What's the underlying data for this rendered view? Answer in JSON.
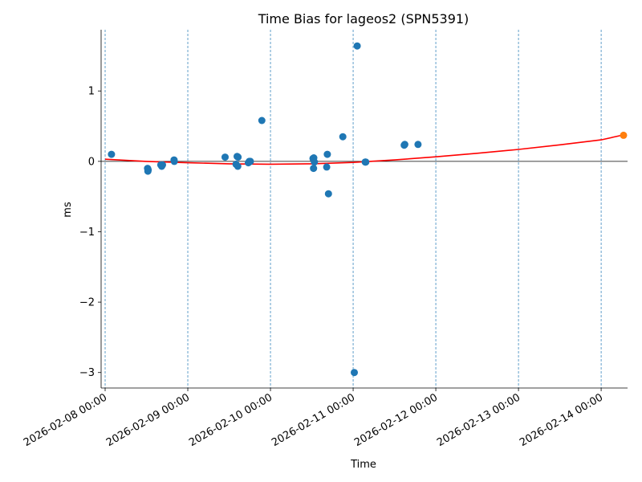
{
  "chart_data": {
    "type": "scatter",
    "title": "Time Bias for lageos2 (SPN5391)",
    "xlabel": "Time",
    "ylabel": "ms",
    "x_tick_labels": [
      "2026-02-08 00:00",
      "2026-02-09 00:00",
      "2026-02-10 00:00",
      "2026-02-11 00:00",
      "2026-02-12 00:00",
      "2026-02-13 00:00",
      "2026-02-14 00:00"
    ],
    "y_tick_labels": [
      "1",
      "0",
      "−1",
      "−2",
      "−3"
    ],
    "y_ticks": [
      1,
      0,
      -1,
      -2,
      -3
    ],
    "xlim": [
      "2026-02-07 22:50",
      "2026-02-14 07:40"
    ],
    "ylim": [
      -3.22,
      1.87
    ],
    "grid": "vertical dashed lines at daily ticks",
    "colors": {
      "points": "#1f77b4",
      "fit": "#ff0000",
      "prediction": "#ff7f0e",
      "grid": "#1f77b4",
      "zero_line": "#000000"
    },
    "series": [
      {
        "points": [
          [
            "2026-02-08 01:50",
            0.1
          ],
          [
            "2026-02-08 12:20",
            -0.1
          ],
          [
            "2026-02-08 12:25",
            -0.14
          ],
          [
            "2026-02-08 12:30",
            -0.12
          ],
          [
            "2026-02-08 16:10",
            -0.05
          ],
          [
            "2026-02-08 16:25",
            -0.07
          ],
          [
            "2026-02-08 16:40",
            -0.05
          ],
          [
            "2026-02-08 20:00",
            0.02
          ],
          [
            "2026-02-08 20:05",
            0.0
          ],
          [
            "2026-02-09 10:50",
            0.06
          ],
          [
            "2026-02-09 14:00",
            -0.04
          ],
          [
            "2026-02-09 14:20",
            0.07
          ],
          [
            "2026-02-09 14:30",
            -0.07
          ],
          [
            "2026-02-09 14:35",
            0.06
          ],
          [
            "2026-02-09 17:35",
            -0.02
          ],
          [
            "2026-02-09 17:50",
            0.0
          ],
          [
            "2026-02-09 18:10",
            0.0
          ],
          [
            "2026-02-09 21:30",
            0.58
          ],
          [
            "2026-02-10 12:20",
            0.04
          ],
          [
            "2026-02-10 12:30",
            -0.1
          ],
          [
            "2026-02-10 12:35",
            0.05
          ],
          [
            "2026-02-10 12:45",
            -0.01
          ],
          [
            "2026-02-10 16:20",
            -0.08
          ],
          [
            "2026-02-10 16:30",
            0.1
          ],
          [
            "2026-02-10 16:50",
            -0.46
          ],
          [
            "2026-02-10 21:00",
            0.35
          ],
          [
            "2026-02-11 00:20",
            -3.0
          ],
          [
            "2026-02-11 01:10",
            1.64
          ],
          [
            "2026-02-11 03:30",
            -0.01
          ],
          [
            "2026-02-11 03:40",
            -0.01
          ],
          [
            "2026-02-11 14:50",
            0.23
          ],
          [
            "2026-02-11 15:00",
            0.24
          ],
          [
            "2026-02-11 18:50",
            0.24
          ]
        ]
      },
      {
        "kind": "fit",
        "points": [
          [
            "2026-02-08 00:00",
            0.03
          ],
          [
            "2026-02-08 12:00",
            0.0
          ],
          [
            "2026-02-09 00:00",
            -0.02
          ],
          [
            "2026-02-09 12:00",
            -0.035
          ],
          [
            "2026-02-10 00:00",
            -0.04
          ],
          [
            "2026-02-10 12:00",
            -0.035
          ],
          [
            "2026-02-11 00:00",
            -0.015
          ],
          [
            "2026-02-11 12:00",
            0.02
          ],
          [
            "2026-02-12 00:00",
            0.065
          ],
          [
            "2026-02-12 12:00",
            0.115
          ],
          [
            "2026-02-13 00:00",
            0.17
          ],
          [
            "2026-02-13 12:00",
            0.235
          ],
          [
            "2026-02-14 00:00",
            0.305
          ],
          [
            "2026-02-14 06:00",
            0.37
          ]
        ]
      },
      {
        "kind": "prediction",
        "points": [
          [
            "2026-02-14 06:30",
            0.37
          ]
        ]
      }
    ]
  }
}
